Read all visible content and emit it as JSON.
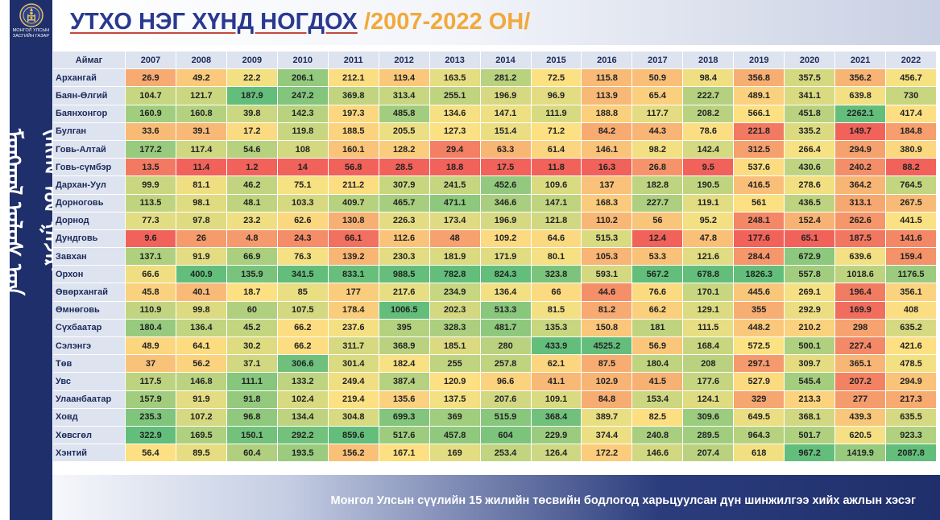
{
  "header": {
    "title_main": "УТХО НЭГ ХҮНД НОГДОХ",
    "title_years": " /2007-2022 ОН/"
  },
  "logo": {
    "emblem_icon": "mongolia-soyombo-emblem",
    "text_line1": "МОНГОЛ УЛСЫН",
    "text_line2": "ЗАСГИЙН ГАЗАР"
  },
  "sidebar": {
    "vertical_text": "ᠮᠣᠩᠭᠣᠯ ᠤᠯᠤᠰ ᠤᠨ ᠵᠠᠰᠠᠭ ᠤᠨ ᠭᠠᠵᠠᠷ"
  },
  "table": {
    "corner_label": "Аймаг",
    "years": [
      "2007",
      "2008",
      "2009",
      "2010",
      "2011",
      "2012",
      "2013",
      "2014",
      "2015",
      "2016",
      "2017",
      "2018",
      "2019",
      "2020",
      "2021",
      "2022"
    ],
    "rows": [
      {
        "name": "Архангай",
        "values": [
          "26.9",
          "49.2",
          "22.2",
          "206.1",
          "212.1",
          "119.4",
          "163.5",
          "281.2",
          "72.5",
          "115.8",
          "50.9",
          "98.4",
          "356.8",
          "357.5",
          "356.2",
          "456.7"
        ]
      },
      {
        "name": "Баян-Өлгий",
        "values": [
          "104.7",
          "121.7",
          "187.9",
          "247.2",
          "369.8",
          "313.4",
          "255.1",
          "196.9",
          "96.9",
          "113.9",
          "65.4",
          "222.7",
          "489.1",
          "341.1",
          "639.8",
          "730"
        ]
      },
      {
        "name": "Баянхонгор",
        "values": [
          "160.9",
          "160.8",
          "39.8",
          "142.3",
          "197.3",
          "485.8",
          "134.6",
          "147.1",
          "111.9",
          "188.8",
          "117.7",
          "208.2",
          "566.1",
          "451.8",
          "2262.1",
          "417.4"
        ]
      },
      {
        "name": "Булган",
        "values": [
          "33.6",
          "39.1",
          "17.2",
          "119.8",
          "188.5",
          "205.5",
          "127.3",
          "151.4",
          "71.2",
          "84.2",
          "44.3",
          "78.6",
          "221.8",
          "335.2",
          "149.7",
          "184.8"
        ]
      },
      {
        "name": "Говь-Алтай",
        "values": [
          "177.2",
          "117.4",
          "54.6",
          "108",
          "160.1",
          "128.2",
          "29.4",
          "63.3",
          "61.4",
          "146.1",
          "98.2",
          "142.4",
          "312.5",
          "266.4",
          "294.9",
          "380.9"
        ]
      },
      {
        "name": "Говь-сүмбэр",
        "values": [
          "13.5",
          "11.4",
          "1.2",
          "14",
          "56.8",
          "28.5",
          "18.8",
          "17.5",
          "11.8",
          "16.3",
          "26.8",
          "9.5",
          "537.6",
          "430.6",
          "240.2",
          "88.2"
        ]
      },
      {
        "name": "Дархан-Уул",
        "values": [
          "99.9",
          "81.1",
          "46.2",
          "75.1",
          "211.2",
          "307.9",
          "241.5",
          "452.6",
          "109.6",
          "137",
          "182.8",
          "190.5",
          "416.5",
          "278.6",
          "364.2",
          "764.5"
        ]
      },
      {
        "name": "Дорноговь",
        "values": [
          "113.5",
          "98.1",
          "48.1",
          "103.3",
          "409.7",
          "465.7",
          "471.1",
          "346.6",
          "147.1",
          "168.3",
          "227.7",
          "119.1",
          "561",
          "436.5",
          "313.1",
          "267.5"
        ]
      },
      {
        "name": "Дорнод",
        "values": [
          "77.3",
          "97.8",
          "23.2",
          "62.6",
          "130.8",
          "226.3",
          "173.4",
          "196.9",
          "121.8",
          "110.2",
          "56",
          "95.2",
          "248.1",
          "152.4",
          "262.6",
          "441.5"
        ]
      },
      {
        "name": "Дундговь",
        "values": [
          "9.6",
          "26",
          "4.8",
          "24.3",
          "66.1",
          "112.6",
          "48",
          "109.2",
          "64.6",
          "515.3",
          "12.4",
          "47.8",
          "177.6",
          "65.1",
          "187.5",
          "141.6"
        ]
      },
      {
        "name": "Завхан",
        "values": [
          "137.1",
          "91.9",
          "66.9",
          "76.3",
          "139.2",
          "230.3",
          "181.9",
          "171.9",
          "80.1",
          "105.3",
          "53.3",
          "121.6",
          "284.4",
          "672.9",
          "639.6",
          "159.4"
        ]
      },
      {
        "name": "Орхон",
        "values": [
          "66.6",
          "400.9",
          "135.9",
          "341.5",
          "833.1",
          "988.5",
          "782.8",
          "824.3",
          "323.8",
          "593.1",
          "567.2",
          "678.8",
          "1826.3",
          "557.8",
          "1018.6",
          "1176.5"
        ]
      },
      {
        "name": "Өвөрхангай",
        "values": [
          "45.8",
          "40.1",
          "18.7",
          "85",
          "177",
          "217.6",
          "234.9",
          "136.4",
          "66",
          "44.6",
          "76.6",
          "170.1",
          "445.6",
          "269.1",
          "196.4",
          "356.1"
        ]
      },
      {
        "name": "Өмнөговь",
        "values": [
          "110.9",
          "99.8",
          "60",
          "107.5",
          "178.4",
          "1006.5",
          "202.3",
          "513.3",
          "81.5",
          "81.2",
          "66.2",
          "129.1",
          "355",
          "292.9",
          "169.9",
          "408"
        ]
      },
      {
        "name": "Сүхбаатар",
        "values": [
          "180.4",
          "136.4",
          "45.2",
          "66.2",
          "237.6",
          "395",
          "328.3",
          "481.7",
          "135.3",
          "150.8",
          "181",
          "111.5",
          "448.2",
          "210.2",
          "298",
          "635.2"
        ]
      },
      {
        "name": "Сэлэнгэ",
        "values": [
          "48.9",
          "64.1",
          "30.2",
          "66.2",
          "311.7",
          "368.9",
          "185.1",
          "280",
          "433.9",
          "4525.2",
          "56.9",
          "168.4",
          "572.5",
          "500.1",
          "227.4",
          "421.6"
        ]
      },
      {
        "name": "Төв",
        "values": [
          "37",
          "56.2",
          "37.1",
          "306.6",
          "301.4",
          "182.4",
          "255",
          "257.8",
          "62.1",
          "87.5",
          "180.4",
          "208",
          "297.1",
          "309.7",
          "365.1",
          "478.5"
        ]
      },
      {
        "name": "Увс",
        "values": [
          "117.5",
          "146.8",
          "111.1",
          "133.2",
          "249.4",
          "387.4",
          "120.9",
          "96.6",
          "41.1",
          "102.9",
          "41.5",
          "177.6",
          "527.9",
          "545.4",
          "207.2",
          "294.9"
        ]
      },
      {
        "name": "Улаанбаатар",
        "values": [
          "157.9",
          "91.9",
          "91.8",
          "102.4",
          "219.4",
          "135.6",
          "137.5",
          "207.6",
          "109.1",
          "84.8",
          "153.4",
          "124.1",
          "329",
          "213.3",
          "277",
          "217.3"
        ]
      },
      {
        "name": "Ховд",
        "values": [
          "235.3",
          "107.2",
          "96.8",
          "134.4",
          "304.8",
          "699.3",
          "369",
          "515.9",
          "368.4",
          "389.7",
          "82.5",
          "309.6",
          "649.5",
          "368.1",
          "439.3",
          "635.5"
        ]
      },
      {
        "name": "Хөвсгөл",
        "values": [
          "322.9",
          "169.5",
          "150.1",
          "292.2",
          "859.6",
          "517.6",
          "457.8",
          "604",
          "229.9",
          "374.4",
          "240.8",
          "289.5",
          "964.3",
          "501.7",
          "620.5",
          "923.3"
        ]
      },
      {
        "name": "Хэнтий",
        "values": [
          "56.4",
          "89.5",
          "60.4",
          "193.5",
          "156.2",
          "167.1",
          "169",
          "253.4",
          "126.4",
          "172.2",
          "146.6",
          "207.4",
          "618",
          "967.2",
          "1419.9",
          "2087.8"
        ]
      }
    ]
  },
  "footer": {
    "caption": "Монгол Улсын сүүлийн 15 жилийн төсвийн бодлогод харьцуулсан дүн шинжилгээ хийх ажлын хэсэг"
  },
  "colors": {
    "navy": "#1f2f6b",
    "title_blue": "#2a3990",
    "title_orange": "#f1a93a",
    "scale_low": "#f0625a",
    "scale_mid": "#fce283",
    "scale_high": "#63be7b"
  }
}
